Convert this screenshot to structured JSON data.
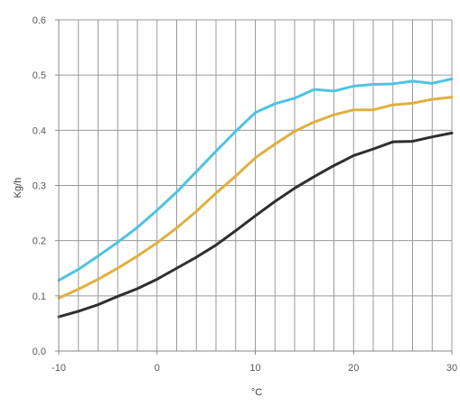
{
  "chart_data": {
    "type": "line",
    "title": "",
    "xlabel": "°C",
    "ylabel": "Kg/h",
    "xlim": [
      -10,
      30
    ],
    "ylim": [
      0.0,
      0.6
    ],
    "x_ticks": [
      -10,
      0,
      10,
      20,
      30
    ],
    "x_tick_labels": [
      "-10",
      "0",
      "10",
      "20",
      "30"
    ],
    "y_ticks": [
      0.0,
      0.1,
      0.2,
      0.3,
      0.4,
      0.5,
      0.6
    ],
    "y_tick_labels": [
      "0.0",
      "0.1",
      "0.2",
      "0.3",
      "0.4",
      "0.5",
      "0.6"
    ],
    "x_minor_step": 2,
    "grid": true,
    "legend": "none",
    "x": [
      -10,
      -8,
      -6,
      -4,
      -2,
      0,
      2,
      4,
      6,
      8,
      10,
      12,
      14,
      16,
      18,
      20,
      22,
      24,
      26,
      28,
      30
    ],
    "series": [
      {
        "color": "#4fc3e2",
        "values": [
          0.128,
          0.148,
          0.172,
          0.197,
          0.224,
          0.255,
          0.288,
          0.325,
          0.362,
          0.398,
          0.432,
          0.448,
          0.458,
          0.474,
          0.471,
          0.48,
          0.483,
          0.484,
          0.489,
          0.485,
          0.493
        ]
      },
      {
        "color": "#e0b040",
        "values": [
          0.096,
          0.112,
          0.13,
          0.15,
          0.172,
          0.196,
          0.223,
          0.253,
          0.286,
          0.317,
          0.35,
          0.375,
          0.398,
          0.415,
          0.428,
          0.437,
          0.437,
          0.446,
          0.449,
          0.456,
          0.46
        ]
      },
      {
        "color": "#2f2f2f",
        "values": [
          0.062,
          0.072,
          0.084,
          0.099,
          0.113,
          0.13,
          0.15,
          0.17,
          0.192,
          0.218,
          0.245,
          0.271,
          0.295,
          0.316,
          0.336,
          0.354,
          0.366,
          0.379,
          0.38,
          0.388,
          0.395
        ]
      }
    ]
  }
}
